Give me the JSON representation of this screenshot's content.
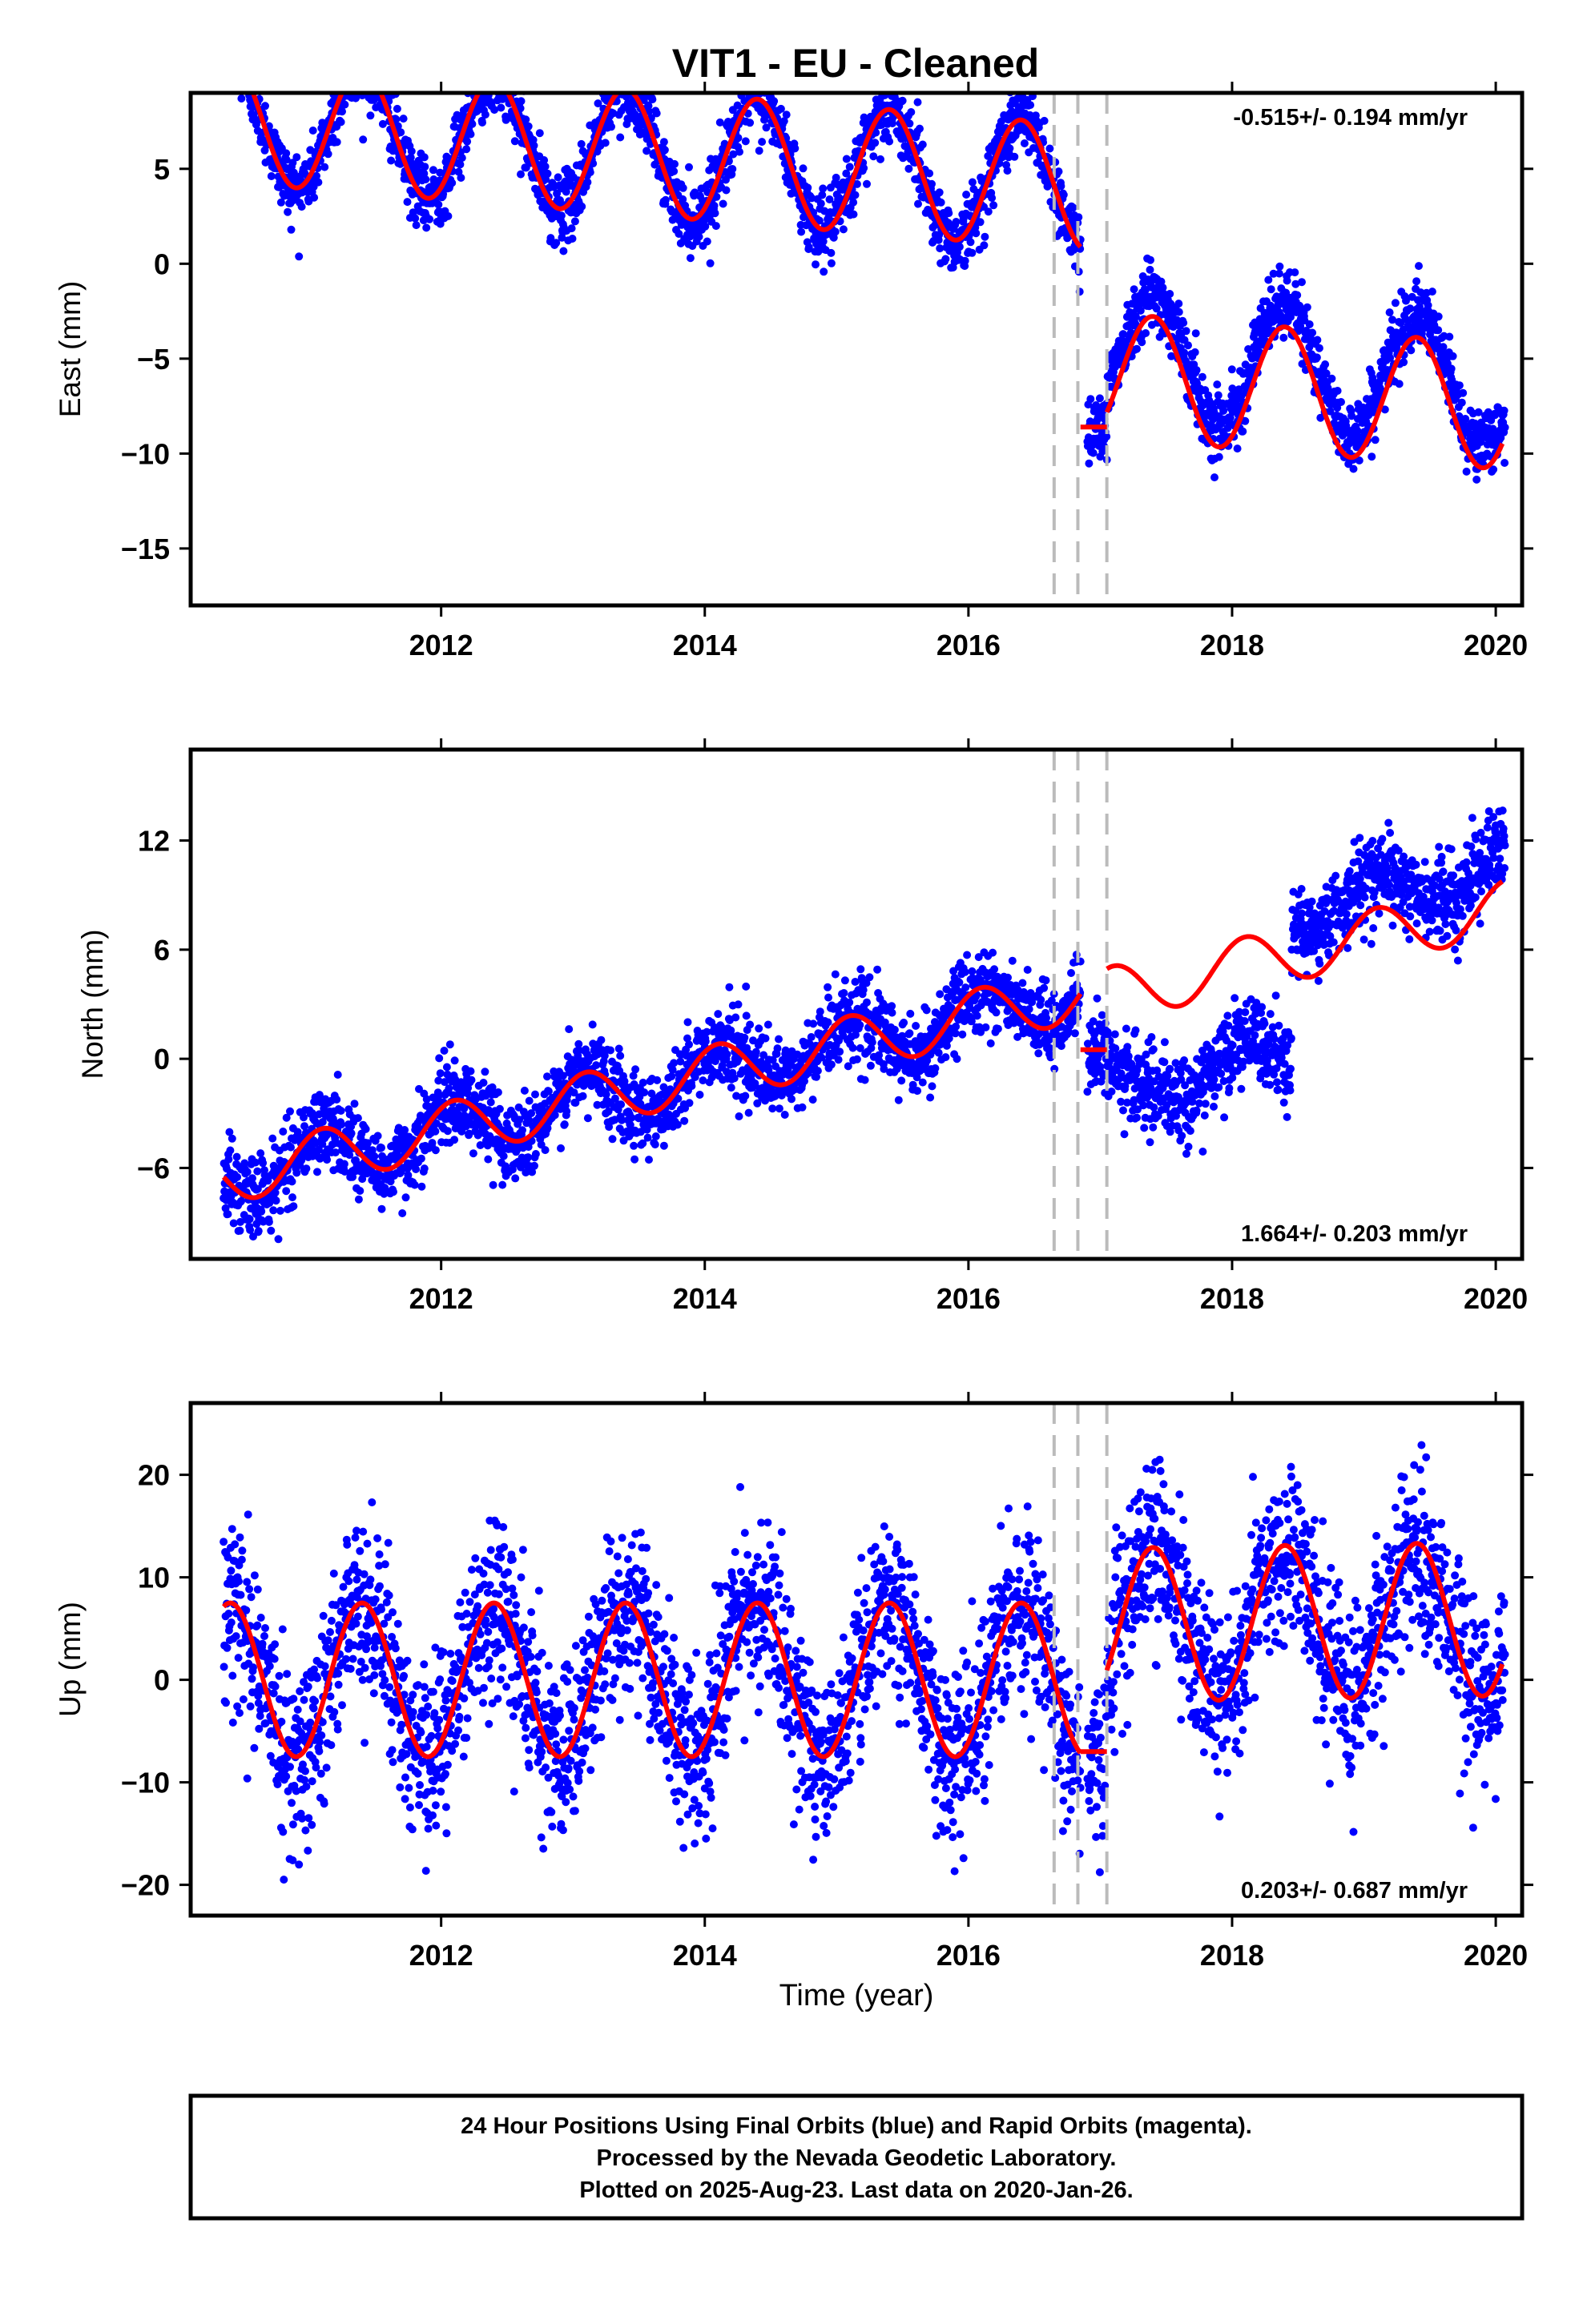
{
  "title": "VIT1  - EU - Cleaned",
  "footer": {
    "line1": "24 Hour Positions Using Final Orbits (blue) and Rapid Orbits (magenta).",
    "line2": "Processed by the Nevada Geodetic Laboratory.",
    "line3": "Plotted on 2025-Aug-23. Last data on 2020-Jan-26."
  },
  "colors": {
    "points": "#0000ff",
    "model": "#ff0000",
    "breaks": "#bbbbbb"
  },
  "chart_data": [
    {
      "type": "scatter",
      "ylabel": "East (mm)",
      "xlabel": "",
      "rate_text": "-0.515+/- 0.194 mm/yr",
      "xlim": [
        2010.1,
        2020.2
      ],
      "ylim": [
        -18,
        9
      ],
      "x_ticks": [
        "2012",
        "2014",
        "2016",
        "2018",
        "2020"
      ],
      "y_ticks": [
        "5",
        "0",
        "-5",
        "-10",
        "-15"
      ],
      "grid": false,
      "breaks": [
        2016.65,
        2016.83,
        2017.05
      ],
      "model": {
        "segments": [
          {
            "x0": 2010.35,
            "x1": 2016.85,
            "offset": 7.6,
            "slope": -0.55,
            "amp": 3.3,
            "phase_year": 2010.4
          },
          {
            "x0": 2016.85,
            "x1": 2017.05,
            "offset": -8.6,
            "slope": 0,
            "amp": 0,
            "phase_year": 2010.4
          },
          {
            "x0": 2017.05,
            "x1": 2020.05,
            "offset": -2.2,
            "slope": -0.55,
            "amp": 3.3,
            "phase_year": 2010.4
          }
        ]
      },
      "points": {
        "count": 3300,
        "scatter_sd_mm": 0.9,
        "note_offset_after_2017": 1.2
      }
    },
    {
      "type": "scatter",
      "ylabel": "North (mm)",
      "xlabel": "",
      "rate_text": "1.664+/- 0.203 mm/yr",
      "xlim": [
        2010.1,
        2020.2
      ],
      "ylim": [
        -11,
        17
      ],
      "x_ticks": [
        "2012",
        "2014",
        "2016",
        "2018",
        "2020"
      ],
      "y_ticks": [
        "12",
        "6",
        "0",
        "-6"
      ],
      "grid": false,
      "breaks": [
        2016.65,
        2016.83,
        2017.05
      ],
      "model": {
        "segments": [
          {
            "x0": 2010.35,
            "x1": 2016.85,
            "offset": -6.5,
            "slope": 1.55,
            "amp": 1.5,
            "phase_year": 2010.1
          },
          {
            "x0": 2016.85,
            "x1": 2017.05,
            "offset": 0.5,
            "slope": 0,
            "amp": 0,
            "phase_year": 2010.1
          },
          {
            "x0": 2017.05,
            "x1": 2020.05,
            "offset": -7.2,
            "slope": 1.6,
            "amp": 1.5,
            "phase_year": 2010.1
          }
        ]
      },
      "points": {
        "count": 3300,
        "scatter_sd_mm": 1.1,
        "step_year": 2018.45,
        "before_step_offset": -2.0,
        "after_step_offset": 2.2
      }
    },
    {
      "type": "scatter",
      "ylabel": "Up (mm)",
      "xlabel": "Time (year)",
      "rate_text": "0.203+/- 0.687 mm/yr",
      "xlim": [
        2010.1,
        2020.2
      ],
      "ylim": [
        -23,
        27
      ],
      "x_ticks": [
        "2012",
        "2014",
        "2016",
        "2018",
        "2020"
      ],
      "y_ticks": [
        "20",
        "10",
        "0",
        "-10",
        "-20"
      ],
      "grid": false,
      "breaks": [
        2016.65,
        2016.83,
        2017.05
      ],
      "model": {
        "segments": [
          {
            "x0": 2010.35,
            "x1": 2016.85,
            "offset": 0.0,
            "slope": 0.0,
            "amp": 7.5,
            "phase_year": 2010.4
          },
          {
            "x0": 2016.85,
            "x1": 2017.05,
            "offset": -7.0,
            "slope": 0,
            "amp": 0,
            "phase_year": 2010.4
          },
          {
            "x0": 2017.05,
            "x1": 2020.05,
            "offset": 4.0,
            "slope": 0.2,
            "amp": 7.5,
            "phase_year": 2010.4
          }
        ]
      },
      "points": {
        "count": 3300,
        "scatter_sd_mm": 4.2
      }
    }
  ]
}
